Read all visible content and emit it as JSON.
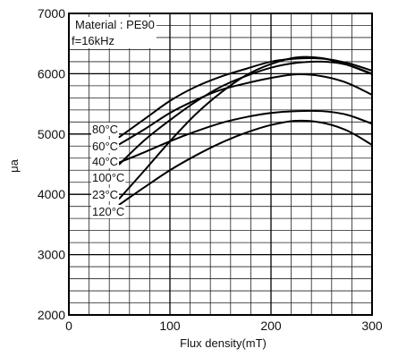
{
  "chart_data": {
    "type": "line",
    "title": "",
    "xlabel": "Flux density(mT)",
    "ylabel": "μa",
    "xlim": [
      0,
      300
    ],
    "ylim": [
      2000,
      7000
    ],
    "x_ticks": [
      0,
      100,
      200,
      300
    ],
    "x_tick_labels": [
      "0",
      "100",
      "200",
      "300"
    ],
    "y_ticks": [
      2000,
      3000,
      4000,
      5000,
      6000,
      7000
    ],
    "y_tick_labels": [
      "2000",
      "3000",
      "4000",
      "5000",
      "6000",
      "7000"
    ],
    "x_minor_step": 20,
    "y_minor_step": 200,
    "grid": true,
    "annotations": [
      "Material : PE90",
      "f=16kHz"
    ],
    "series": [
      {
        "name": "80°C",
        "x": [
          50,
          75,
          100,
          125,
          150,
          175,
          200,
          225,
          250,
          275,
          300
        ],
        "y": [
          4950,
          5250,
          5550,
          5780,
          5950,
          6080,
          6200,
          6250,
          6250,
          6180,
          6050
        ]
      },
      {
        "name": "60°C",
        "x": [
          50,
          75,
          100,
          125,
          150,
          175,
          200,
          225,
          250,
          275,
          300
        ],
        "y": [
          4830,
          5080,
          5350,
          5560,
          5730,
          5840,
          5930,
          5990,
          5960,
          5850,
          5650
        ]
      },
      {
        "name": "40°C",
        "x": [
          50,
          75,
          100,
          125,
          150,
          175,
          200,
          225,
          250,
          275,
          300
        ],
        "y": [
          4530,
          4700,
          4880,
          5040,
          5180,
          5280,
          5350,
          5380,
          5380,
          5320,
          5170
        ]
      },
      {
        "name": "100°C",
        "x": [
          50,
          75,
          100,
          125,
          150,
          175,
          200,
          225,
          250,
          275,
          300
        ],
        "y": [
          4500,
          4900,
          5230,
          5530,
          5780,
          5960,
          6100,
          6180,
          6200,
          6150,
          6000
        ]
      },
      {
        "name": "23°C",
        "x": [
          50,
          75,
          100,
          125,
          150,
          175,
          200,
          225,
          250,
          275,
          300
        ],
        "y": [
          3930,
          4400,
          4880,
          5320,
          5680,
          5970,
          6160,
          6270,
          6260,
          6150,
          5990
        ]
      },
      {
        "name": "120°C",
        "x": [
          50,
          75,
          100,
          125,
          150,
          175,
          200,
          225,
          250,
          275,
          300
        ],
        "y": [
          3830,
          4120,
          4400,
          4640,
          4850,
          5020,
          5150,
          5220,
          5190,
          5060,
          4820
        ]
      }
    ]
  }
}
